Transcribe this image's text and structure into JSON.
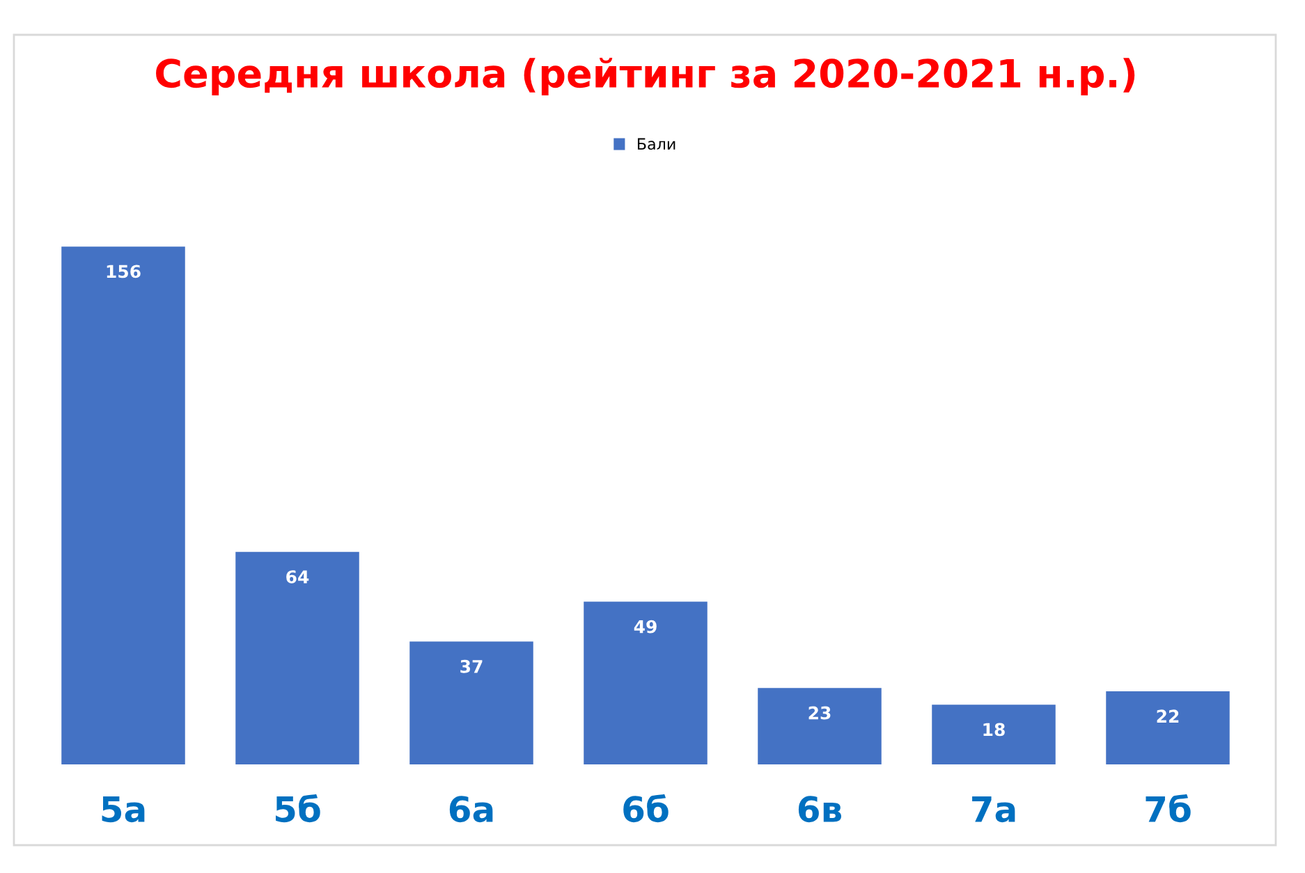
{
  "chart_data": {
    "type": "bar",
    "title": "Середня школа (рейтинг за 2020-2021 н.р.)",
    "categories": [
      "5а",
      "5б",
      "6а",
      "6б",
      "6в",
      "7а",
      "7б"
    ],
    "series": [
      {
        "name": "Бали",
        "color": "#4472c4",
        "values": [
          156,
          64,
          37,
          49,
          23,
          18,
          22
        ]
      }
    ],
    "data_labels": true,
    "legend": "top",
    "tick_labels": "x",
    "grid": false
  }
}
